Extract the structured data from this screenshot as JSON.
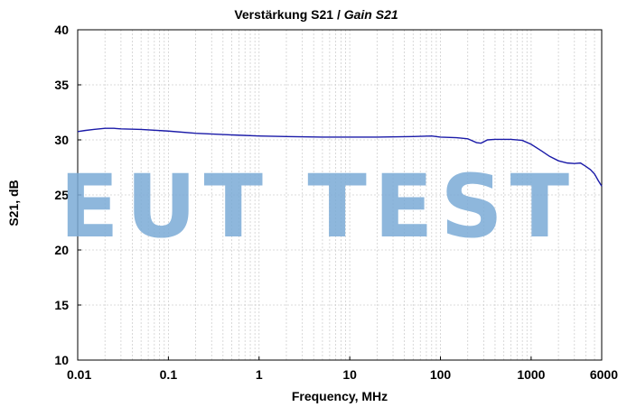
{
  "chart_data": {
    "type": "line",
    "title": "Verstärkung S21",
    "title_separator": " / ",
    "title_en": "Gain S21",
    "xlabel": "Frequency, MHz",
    "ylabel": "S21, dB",
    "x_scale": "log",
    "xlim": [
      0.01,
      6000
    ],
    "ylim": [
      10,
      40
    ],
    "x_ticks": [
      0.01,
      0.1,
      1,
      10,
      100,
      1000,
      6000
    ],
    "x_tick_labels": [
      "0.01",
      "0.1",
      "1",
      "10",
      "100",
      "1000",
      "6000"
    ],
    "y_ticks": [
      10,
      15,
      20,
      25,
      30,
      35,
      40
    ],
    "y_tick_labels": [
      "10",
      "15",
      "20",
      "25",
      "30",
      "35",
      "40"
    ],
    "grid": true,
    "series": [
      {
        "color": "#1a1aa8",
        "x": [
          0.01,
          0.012,
          0.015,
          0.02,
          0.025,
          0.03,
          0.05,
          0.1,
          0.2,
          0.5,
          1,
          2,
          5,
          10,
          20,
          50,
          80,
          100,
          150,
          200,
          250,
          280,
          330,
          400,
          600,
          800,
          1000,
          1300,
          1600,
          2000,
          2500,
          3000,
          3500,
          4000,
          4500,
          5000,
          5500,
          6000
        ],
        "y": [
          30.75,
          30.85,
          30.95,
          31.05,
          31.05,
          31.0,
          30.95,
          30.8,
          30.6,
          30.45,
          30.35,
          30.3,
          30.25,
          30.25,
          30.25,
          30.3,
          30.35,
          30.25,
          30.2,
          30.1,
          29.75,
          29.7,
          30.0,
          30.05,
          30.05,
          29.95,
          29.6,
          29.0,
          28.5,
          28.1,
          27.9,
          27.85,
          27.9,
          27.6,
          27.3,
          26.9,
          26.3,
          25.8
        ]
      }
    ]
  },
  "watermark": {
    "text": "EUT TEST",
    "color": "#7aaad6"
  }
}
